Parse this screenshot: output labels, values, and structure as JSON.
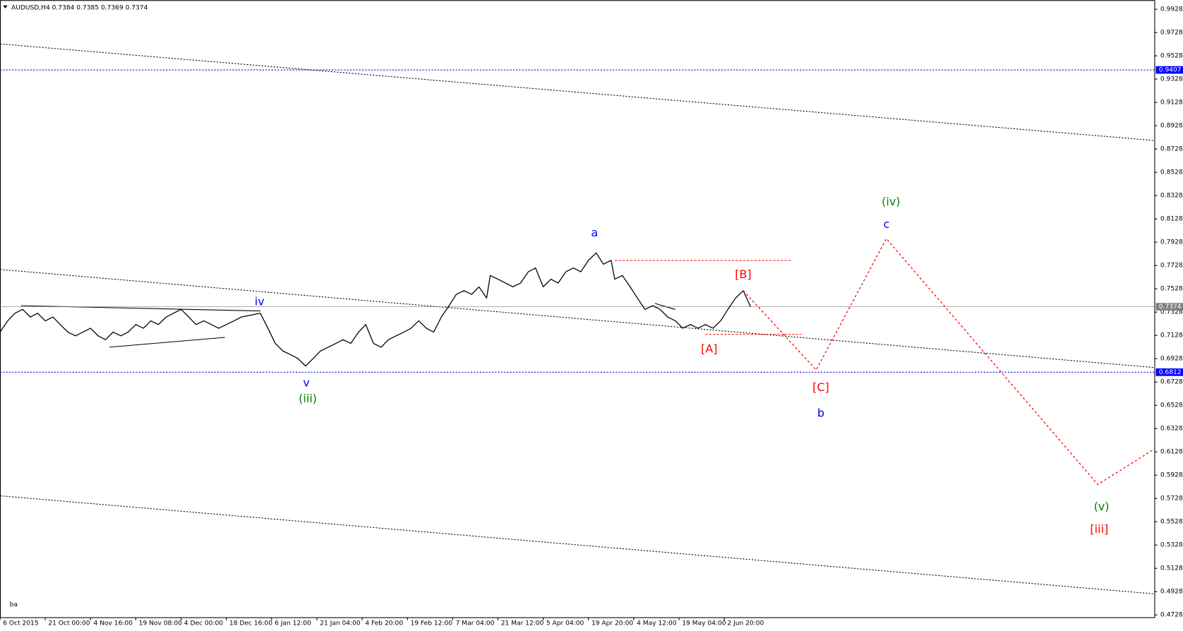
{
  "chart_data": {
    "type": "line",
    "title": "AUDUSD,H4  0.7384 0.7385 0.7369 0.7374",
    "color": "#000000",
    "x": [
      0,
      0.17,
      0.33,
      0.5,
      0.67,
      0.83,
      1,
      1.17,
      1.33,
      1.5,
      1.67,
      1.83,
      2,
      2.17,
      2.33,
      2.5,
      2.67,
      2.83,
      3,
      3.17,
      3.33,
      3.5,
      3.67,
      3.83,
      4,
      4.17,
      4.33,
      4.5,
      4.67,
      4.83,
      5,
      5.17,
      5.33,
      5.5,
      5.75,
      5.92,
      6.08,
      6.25,
      6.42,
      6.58,
      6.75,
      6.92,
      7.08,
      7.25,
      7.42,
      7.58,
      7.75,
      7.92,
      8.08,
      8.25,
      8.42,
      8.58,
      8.75,
      8.92,
      9.08,
      9.25,
      9.42,
      9.58,
      9.75,
      9.92,
      10.08,
      10.25,
      10.42,
      10.58,
      10.75,
      10.83,
      11,
      11.17,
      11.33,
      11.5,
      11.67,
      11.83,
      12,
      12.17,
      12.33,
      12.5,
      12.67,
      12.83,
      13,
      13.17,
      13.33,
      13.5,
      13.58,
      13.75,
      13.92,
      14.08,
      14.25,
      14.42,
      14.58,
      14.75,
      14.92,
      15.08,
      15.25,
      15.42,
      15.58,
      15.75,
      15.92,
      16.08,
      16.25,
      16.42,
      16.58
    ],
    "values": [
      0.7156,
      0.7253,
      0.7318,
      0.7351,
      0.7286,
      0.7318,
      0.7253,
      0.7286,
      0.7221,
      0.7156,
      0.7124,
      0.7156,
      0.7189,
      0.7124,
      0.7091,
      0.7156,
      0.7124,
      0.7156,
      0.7221,
      0.7189,
      0.7253,
      0.7221,
      0.7286,
      0.7318,
      0.7351,
      0.7286,
      0.7221,
      0.7253,
      0.7221,
      0.7189,
      0.7221,
      0.7253,
      0.7286,
      0.7299,
      0.7318,
      0.7189,
      0.7059,
      0.6994,
      0.6962,
      0.693,
      0.6865,
      0.693,
      0.6994,
      0.7027,
      0.7059,
      0.7091,
      0.7059,
      0.7156,
      0.7221,
      0.7059,
      0.7027,
      0.7091,
      0.7124,
      0.7156,
      0.7189,
      0.7253,
      0.7189,
      0.7156,
      0.7286,
      0.7383,
      0.748,
      0.7512,
      0.748,
      0.7545,
      0.7448,
      0.7642,
      0.761,
      0.7577,
      0.7545,
      0.7577,
      0.7674,
      0.7707,
      0.7545,
      0.761,
      0.7577,
      0.7674,
      0.7707,
      0.7674,
      0.7772,
      0.7836,
      0.7739,
      0.7772,
      0.761,
      0.7642,
      0.7545,
      0.7448,
      0.7351,
      0.7383,
      0.7351,
      0.7286,
      0.7253,
      0.7189,
      0.7221,
      0.7189,
      0.7221,
      0.7189,
      0.7253,
      0.7351,
      0.7448,
      0.7512,
      0.7374
    ],
    "projection": {
      "color": "#ff0000",
      "x": [
        16.42,
        18.03,
        19.58,
        24.25,
        25.5
      ],
      "values": [
        0.7512,
        0.6832,
        0.7959,
        0.5848,
        0.6152
      ]
    },
    "levels": [
      {
        "value": 0.9407,
        "color": "#0000ff"
      },
      {
        "value": 0.6812,
        "color": "#0000ff"
      },
      {
        "value": 0.7374,
        "color": "#808080"
      }
    ],
    "xlim": [
      0,
      25.5
    ],
    "ylim": [
      0.4708,
      1.0006
    ],
    "xticks": [
      {
        "value": 0,
        "label": "6 Oct 2015"
      },
      {
        "value": 1,
        "label": "21 Oct 00:00"
      },
      {
        "value": 2,
        "label": "4 Nov 16:00"
      },
      {
        "value": 3,
        "label": "19 Nov 08:00"
      },
      {
        "value": 4,
        "label": "4 Dec 00:00"
      },
      {
        "value": 5,
        "label": "18 Dec 16:00"
      },
      {
        "value": 6,
        "label": "6 Jan 12:00"
      },
      {
        "value": 7,
        "label": "21 Jan 04:00"
      },
      {
        "value": 8,
        "label": "4 Feb 20:00"
      },
      {
        "value": 9,
        "label": "19 Feb 12:00"
      },
      {
        "value": 10,
        "label": "7 Mar 04:00"
      },
      {
        "value": 11,
        "label": "21 Mar 12:00"
      },
      {
        "value": 12,
        "label": "5 Apr 04:00"
      },
      {
        "value": 13,
        "label": "19 Apr 20:00"
      },
      {
        "value": 14,
        "label": "4 May 12:00"
      },
      {
        "value": 15,
        "label": "19 May 04:00"
      },
      {
        "value": 16,
        "label": "2 Jun 20:00"
      }
    ],
    "yticks": [
      0.9928,
      0.9728,
      0.9528,
      0.9328,
      0.9128,
      0.8928,
      0.8728,
      0.8528,
      0.8328,
      0.8128,
      0.7928,
      0.7728,
      0.7528,
      0.7328,
      0.7128,
      0.6928,
      0.6728,
      0.6528,
      0.6328,
      0.6128,
      0.5928,
      0.5728,
      0.5528,
      0.5328,
      0.5128,
      0.4928,
      0.4728
    ],
    "annotations": [
      {
        "text": "iv",
        "color": "#0000ff"
      },
      {
        "text": "v",
        "color": "#0000ff"
      },
      {
        "text": "(iii)",
        "color": "#008000"
      },
      {
        "text": "a",
        "color": "#0000ff"
      },
      {
        "text": "[B]",
        "color": "#ff0000"
      },
      {
        "text": "[A]",
        "color": "#ff0000"
      },
      {
        "text": "[C]",
        "color": "#ff0000"
      },
      {
        "text": "b",
        "color": "#0000ff"
      },
      {
        "text": "(iv)",
        "color": "#008000"
      },
      {
        "text": "c",
        "color": "#0000ff"
      },
      {
        "text": "(v)",
        "color": "#008000"
      },
      {
        "text": "[iii]",
        "color": "#ff0000"
      },
      {
        "text": "ba",
        "color": "#000000"
      }
    ]
  }
}
